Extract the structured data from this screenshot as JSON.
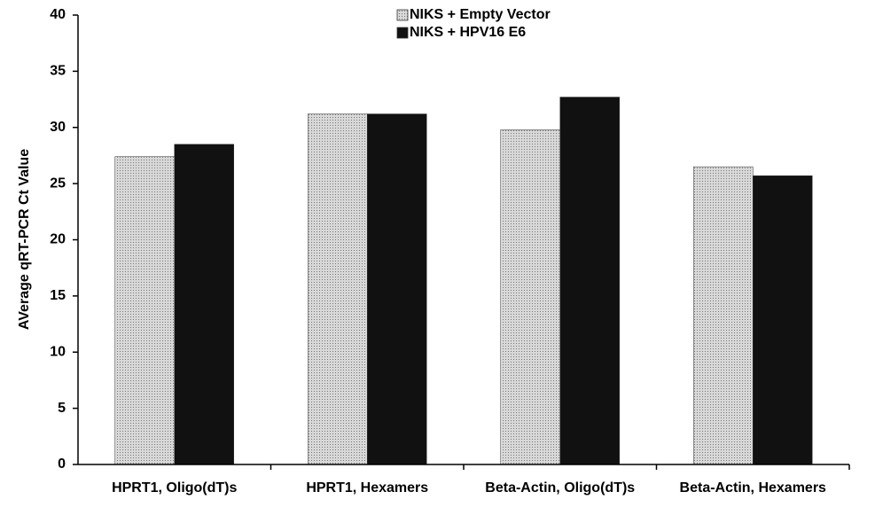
{
  "chart_data": {
    "type": "bar",
    "y_label": "AVerage qRT-PCR Ct Value",
    "categories": [
      "HPRT1, Oligo(dT)s",
      "HPRT1, Hexamers",
      "Beta-Actin, Oligo(dT)s",
      "Beta-Actin, Hexamers"
    ],
    "series": [
      {
        "name": "NIKS + Empty Vector",
        "color": "#c4c4c4",
        "values": [
          27.4,
          31.2,
          29.8,
          26.5
        ]
      },
      {
        "name": "NIKS + HPV16 E6",
        "color": "#111111",
        "values": [
          28.5,
          31.2,
          32.7,
          25.7
        ]
      }
    ],
    "ylim": [
      0,
      40
    ],
    "yticks": [
      0,
      5,
      10,
      15,
      20,
      25,
      30,
      35,
      40
    ],
    "grid": false,
    "legend": "top"
  }
}
